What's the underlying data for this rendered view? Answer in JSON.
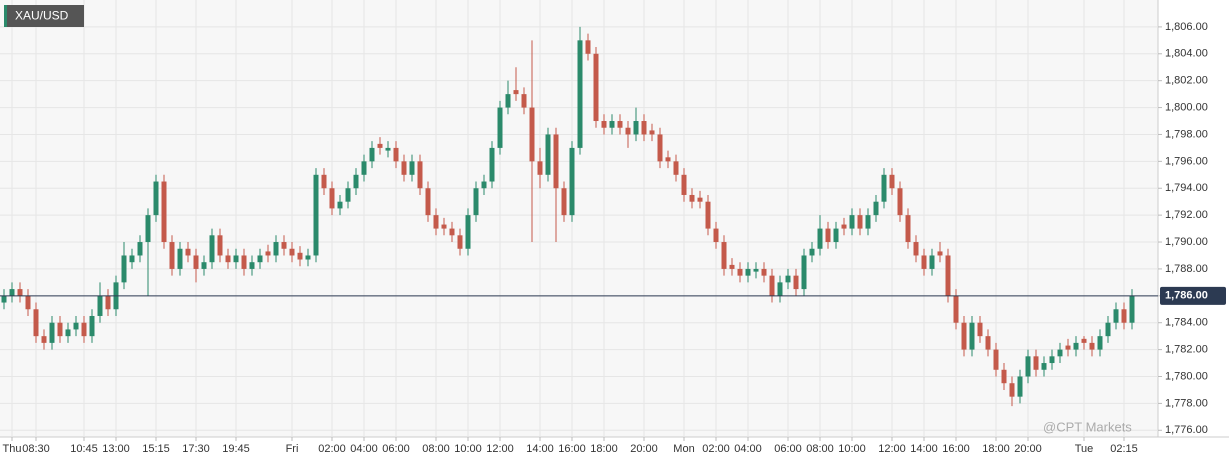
{
  "chart_data": {
    "type": "candlestick",
    "title": "XAU/USD",
    "watermark": "@CPT Markets",
    "categories": [
      null,
      "Thu",
      null,
      null,
      "08:30",
      null,
      null,
      null,
      null,
      null,
      "10:45",
      null,
      null,
      null,
      "13:00",
      null,
      null,
      null,
      null,
      "15:15",
      null,
      null,
      null,
      null,
      "17:30",
      null,
      null,
      null,
      null,
      "19:45",
      null,
      null,
      null,
      null,
      null,
      null,
      "Fri",
      null,
      null,
      null,
      null,
      "02:00",
      null,
      null,
      null,
      "04:00",
      null,
      null,
      null,
      "06:00",
      null,
      null,
      null,
      null,
      "08:00",
      null,
      null,
      null,
      "10:00",
      null,
      null,
      null,
      "12:00",
      null,
      null,
      null,
      null,
      "14:00",
      null,
      null,
      null,
      "16:00",
      null,
      null,
      null,
      "18:00",
      null,
      null,
      null,
      null,
      "20:00",
      null,
      null,
      null,
      null,
      "Mon",
      null,
      null,
      null,
      "02:00",
      null,
      null,
      null,
      "04:00",
      null,
      null,
      null,
      null,
      "06:00",
      null,
      null,
      null,
      "08:00",
      null,
      null,
      null,
      "10:00",
      null,
      null,
      null,
      null,
      "12:00",
      null,
      null,
      null,
      "14:00",
      null,
      null,
      null,
      "16:00",
      null,
      null,
      null,
      null,
      "18:00",
      null,
      null,
      null,
      "20:00",
      null,
      null,
      null,
      null,
      null,
      null,
      "Tue",
      null,
      null,
      null,
      null,
      "02:15",
      null
    ],
    "open": [
      1785.5,
      1786,
      1786.5,
      1786,
      1785,
      1783,
      1782.5,
      1784,
      1783,
      1783.5,
      1784,
      1783,
      1784.5,
      1786,
      1785,
      1787,
      1788.5,
      1789,
      1790,
      1792,
      1794.5,
      1790,
      1788,
      1789.5,
      1789,
      1788,
      1788.5,
      1790.5,
      1789,
      1788.5,
      1789,
      1788,
      1788.5,
      1789.3,
      1789,
      1790,
      1789.5,
      1789.2,
      1788.7,
      1789,
      1795,
      1794,
      1792.5,
      1793,
      1794,
      1795,
      1796,
      1797.3,
      1796.8,
      1797,
      1796,
      1795,
      1796,
      1794,
      1792,
      1791.3,
      1791,
      1790.5,
      1789.5,
      1792,
      1794,
      1794.5,
      1797,
      1800,
      1801.3,
      1801,
      1800,
      1796,
      1795,
      1798,
      1794,
      1792,
      1797,
      1805,
      1804,
      1799,
      1798.5,
      1799,
      1798.5,
      1798,
      1799,
      1798.3,
      1798,
      1796.3,
      1796,
      1795,
      1793.5,
      1793.3,
      1793,
      1791,
      1790,
      1788.3,
      1788,
      1787.5,
      1787.8,
      1788,
      1787.5,
      1786,
      1787,
      1787.5,
      1786.5,
      1789,
      1789.5,
      1791,
      1790,
      1791.3,
      1791,
      1792,
      1791,
      1792,
      1793,
      1795,
      1794,
      1792,
      1790,
      1789,
      1788,
      1789.3,
      1789,
      1786,
      1784,
      1782,
      1784,
      1783,
      1782,
      1780.5,
      1779.5,
      1778.5,
      1780,
      1781.5,
      1780.5,
      1781,
      1781.5,
      1782.3,
      1782,
      1782.8,
      1782.5,
      1782,
      1783,
      1784,
      1785,
      1784
    ],
    "high": [
      1786.5,
      1787,
      1787,
      1786.5,
      1785.5,
      1783.5,
      1784.5,
      1784.5,
      1784,
      1784.5,
      1784.5,
      1785,
      1787,
      1786.5,
      1787.5,
      1790,
      1789.5,
      1790.5,
      1792.5,
      1795,
      1795,
      1790.5,
      1790,
      1790,
      1789.5,
      1789,
      1791,
      1791,
      1789.5,
      1789.5,
      1789.5,
      1789,
      1789.5,
      1789.8,
      1790.5,
      1790.5,
      1790,
      1789.7,
      1789.5,
      1795.5,
      1795.5,
      1794.5,
      1793.5,
      1794.5,
      1795.5,
      1796.5,
      1797.5,
      1797.8,
      1797.5,
      1797.5,
      1796.5,
      1796.5,
      1796.5,
      1794.5,
      1792.5,
      1791.8,
      1791.5,
      1791,
      1792.5,
      1794.5,
      1795,
      1797.5,
      1800.5,
      1802,
      1803,
      1801.5,
      1805,
      1797,
      1798.5,
      1798.5,
      1794.5,
      1797.5,
      1806,
      1805.5,
      1804.5,
      1799.5,
      1799.5,
      1799.5,
      1799,
      1800,
      1799.5,
      1798.8,
      1798.5,
      1796.8,
      1796.5,
      1795.5,
      1794,
      1793.8,
      1793.5,
      1791.5,
      1790.5,
      1788.8,
      1788.5,
      1788.5,
      1788.5,
      1788.5,
      1788,
      1787.5,
      1788,
      1788,
      1789.5,
      1790,
      1792,
      1791.5,
      1791.5,
      1791.8,
      1792.5,
      1792.5,
      1792.5,
      1793.5,
      1795.5,
      1795.5,
      1794.5,
      1792.5,
      1790.5,
      1789.5,
      1789.5,
      1790,
      1789.5,
      1786.5,
      1784.5,
      1784.5,
      1784.5,
      1783.5,
      1782.5,
      1781,
      1780,
      1780.5,
      1782,
      1782,
      1781.5,
      1782,
      1782.5,
      1782.8,
      1783,
      1783,
      1783,
      1783.5,
      1784.5,
      1785.5,
      1785.5,
      1786.5
    ],
    "low": [
      1785,
      1785.5,
      1785.5,
      1784.5,
      1782.5,
      1782,
      1782,
      1782.5,
      1782.5,
      1783,
      1782.5,
      1782.5,
      1784,
      1784.5,
      1784.5,
      1786.5,
      1788,
      1788.5,
      1786,
      1791.5,
      1789.5,
      1787.5,
      1787.5,
      1788.5,
      1787,
      1787.5,
      1788,
      1788.5,
      1788,
      1788,
      1787.5,
      1787.5,
      1788,
      1788.5,
      1788.5,
      1789,
      1788.5,
      1788.2,
      1788.2,
      1788.5,
      1793.5,
      1792,
      1792,
      1792.5,
      1793.5,
      1794.5,
      1795.5,
      1796.5,
      1796.3,
      1795.5,
      1794.5,
      1794.5,
      1793.5,
      1791.5,
      1790.5,
      1790.5,
      1790,
      1789,
      1789,
      1791.5,
      1793.5,
      1794,
      1796.5,
      1799.5,
      1800.5,
      1799.5,
      1790,
      1794,
      1794.5,
      1790,
      1791.5,
      1791.5,
      1796.5,
      1803.5,
      1798.5,
      1798,
      1798,
      1798,
      1797,
      1797.5,
      1797.5,
      1797.5,
      1795.5,
      1795.5,
      1794.5,
      1793,
      1792.5,
      1792.5,
      1790.5,
      1789.5,
      1787.5,
      1787.5,
      1787,
      1787,
      1787.3,
      1787,
      1785.5,
      1785.5,
      1786.5,
      1786,
      1786,
      1788.5,
      1789,
      1789.5,
      1789.5,
      1790.5,
      1790.5,
      1790.5,
      1790.5,
      1791.5,
      1792.5,
      1793.5,
      1791.5,
      1789.5,
      1788.5,
      1787.5,
      1787.5,
      1788.5,
      1785.5,
      1783.5,
      1781.5,
      1781.5,
      1782.5,
      1781.5,
      1780,
      1779,
      1777.8,
      1778,
      1779.5,
      1780,
      1780,
      1780.5,
      1781,
      1781.5,
      1781.5,
      1782,
      1781.5,
      1781.5,
      1782.5,
      1783.5,
      1783.5,
      1783.5
    ],
    "close": [
      1786,
      1786.5,
      1786,
      1785,
      1783,
      1782.5,
      1784,
      1783,
      1783.5,
      1784,
      1783,
      1784.5,
      1786,
      1785,
      1787,
      1789,
      1789,
      1790,
      1792,
      1794.5,
      1790,
      1788,
      1789.5,
      1789,
      1788,
      1788.5,
      1790.5,
      1789,
      1788.5,
      1789,
      1788,
      1788.5,
      1789,
      1789,
      1790,
      1789.5,
      1789,
      1788.7,
      1789,
      1795,
      1794,
      1792.5,
      1793,
      1794,
      1795,
      1796,
      1797,
      1797,
      1797,
      1796,
      1795,
      1796,
      1794,
      1792,
      1791,
      1791,
      1790.5,
      1789.5,
      1792,
      1794,
      1794.5,
      1797,
      1800,
      1801,
      1801,
      1800,
      1796,
      1795,
      1798,
      1794,
      1792,
      1797,
      1805,
      1804,
      1799,
      1798.5,
      1799,
      1798.5,
      1798,
      1799,
      1798,
      1798,
      1796,
      1796,
      1795,
      1793.5,
      1793,
      1793,
      1791,
      1790,
      1788,
      1788,
      1787.5,
      1788,
      1788,
      1787.5,
      1786,
      1787,
      1787.5,
      1786.5,
      1789,
      1789.5,
      1791,
      1790,
      1791,
      1791,
      1792,
      1791,
      1792,
      1793,
      1795,
      1794,
      1792,
      1790,
      1789,
      1788,
      1789,
      1789,
      1786,
      1784,
      1782,
      1784,
      1783,
      1782,
      1780.5,
      1779.5,
      1778.5,
      1780,
      1781.5,
      1780.5,
      1781,
      1781.5,
      1782,
      1782,
      1782.5,
      1782.5,
      1782,
      1783,
      1784,
      1785,
      1784,
      1786
    ],
    "up_color": "#2b8a6b",
    "down_color": "#c45a4b",
    "current_price": {
      "value": 1786,
      "label": "1,786.00"
    },
    "current_price_color": "#2c3a52",
    "ylim": [
      1775.5,
      1808
    ],
    "yticks": [
      {
        "value": 1776,
        "label": "1,776.00"
      },
      {
        "value": 1778,
        "label": "1,778.00"
      },
      {
        "value": 1780,
        "label": "1,780.00"
      },
      {
        "value": 1782,
        "label": "1,782.00"
      },
      {
        "value": 1784,
        "label": "1,784.00"
      },
      {
        "value": 1786,
        "label": "1,786.00"
      },
      {
        "value": 1788,
        "label": "1,788.00"
      },
      {
        "value": 1790,
        "label": "1,790.00"
      },
      {
        "value": 1792,
        "label": "1,792.00"
      },
      {
        "value": 1794,
        "label": "1,794.00"
      },
      {
        "value": 1796,
        "label": "1,796.00"
      },
      {
        "value": 1798,
        "label": "1,798.00"
      },
      {
        "value": 1800,
        "label": "1,800.00"
      },
      {
        "value": 1802,
        "label": "1,802.00"
      },
      {
        "value": 1804,
        "label": "1,804.00"
      },
      {
        "value": 1806,
        "label": "1,806.00"
      }
    ],
    "grid": true
  }
}
